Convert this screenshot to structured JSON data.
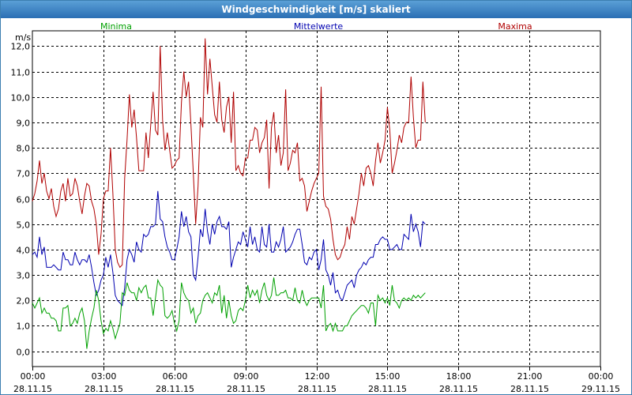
{
  "window": {
    "title": "Windgeschwindigkeit [m/s] skaliert"
  },
  "chart_data": {
    "type": "line",
    "title": "Windgeschwindigkeit [m/s] skaliert",
    "ylabel": "m/s",
    "ylim": [
      -0.6,
      12.6
    ],
    "yticks": [
      "0,0",
      "1,0",
      "2,0",
      "3,0",
      "4,0",
      "5,0",
      "6,0",
      "7,0",
      "8,0",
      "9,0",
      "10,0",
      "11,0",
      "12,0"
    ],
    "ytick_values": [
      0,
      1,
      2,
      3,
      4,
      5,
      6,
      7,
      8,
      9,
      10,
      11,
      12
    ],
    "xlim": [
      0,
      24
    ],
    "xticks": [
      {
        "time": "00:00",
        "date": "28.11.15"
      },
      {
        "time": "03:00",
        "date": "28.11.15"
      },
      {
        "time": "06:00",
        "date": "28.11.15"
      },
      {
        "time": "09:00",
        "date": "28.11.15"
      },
      {
        "time": "12:00",
        "date": "28.11.15"
      },
      {
        "time": "15:00",
        "date": "28.11.15"
      },
      {
        "time": "18:00",
        "date": "28.11.15"
      },
      {
        "time": "21:00",
        "date": "28.11.15"
      },
      {
        "time": "00:00",
        "date": "29.11.15"
      }
    ],
    "grid": true,
    "legend_position": "top",
    "x_step_hours": 0.1,
    "series": [
      {
        "name": "Maxima",
        "color": "#b00000",
        "values": [
          5.9,
          6.2,
          6.7,
          7.5,
          6.6,
          7.0,
          6.3,
          6.0,
          6.4,
          5.7,
          5.3,
          5.6,
          6.3,
          6.6,
          5.9,
          6.8,
          6.1,
          6.2,
          6.8,
          6.5,
          5.9,
          5.4,
          6.1,
          6.6,
          6.5,
          5.9,
          5.6,
          5.0,
          3.8,
          4.6,
          6.0,
          6.3,
          6.3,
          8.0,
          6.2,
          4.0,
          3.5,
          3.3,
          3.4,
          6.8,
          8.3,
          10.1,
          8.8,
          9.5,
          8.4,
          7.1,
          7.1,
          7.1,
          8.6,
          7.6,
          8.9,
          10.2,
          8.7,
          8.5,
          12.0,
          9.1,
          7.9,
          8.6,
          7.9,
          7.2,
          7.3,
          7.5,
          7.6,
          9.8,
          11.0,
          10.0,
          10.6,
          8.9,
          7.0,
          5.0,
          6.5,
          9.2,
          8.8,
          12.3,
          10.1,
          11.5,
          10.4,
          9.3,
          9.0,
          10.6,
          9.1,
          8.6,
          9.6,
          10.0,
          8.2,
          10.2,
          7.1,
          7.3,
          7.0,
          6.9,
          7.6,
          7.6,
          8.3,
          8.3,
          8.8,
          8.7,
          7.8,
          8.2,
          8.4,
          9.1,
          6.4,
          8.8,
          9.4,
          7.8,
          8.5,
          7.3,
          7.8,
          10.3,
          7.1,
          7.4,
          7.9,
          7.8,
          8.2,
          6.7,
          6.8,
          6.5,
          5.5,
          5.9,
          6.3,
          6.6,
          6.8,
          7.0,
          10.4,
          6.1,
          5.7,
          5.6,
          5.2,
          4.4,
          3.8,
          3.6,
          3.7,
          4.0,
          4.2,
          4.9,
          4.4,
          5.3,
          5.0,
          5.6,
          6.2,
          7.0,
          6.5,
          7.2,
          7.3,
          7.0,
          6.5,
          7.5,
          8.2,
          7.4,
          7.8,
          8.3,
          9.6,
          8.7,
          7.0,
          7.4,
          7.9,
          8.5,
          8.2,
          8.8,
          9.0,
          9.0,
          10.8,
          9.2,
          8.0,
          8.3,
          8.3,
          10.6,
          9.0
        ]
      },
      {
        "name": "Mittelwerte",
        "color": "#0000b0",
        "values": [
          3.8,
          3.9,
          3.7,
          4.5,
          3.8,
          4.1,
          3.3,
          3.3,
          3.3,
          3.4,
          3.3,
          3.2,
          3.2,
          3.9,
          3.6,
          3.6,
          3.4,
          3.4,
          3.9,
          3.6,
          3.4,
          3.6,
          3.6,
          3.5,
          3.8,
          3.3,
          2.7,
          2.2,
          2.4,
          2.8,
          3.0,
          3.7,
          3.3,
          3.8,
          3.1,
          2.2,
          2.0,
          1.9,
          1.8,
          2.5,
          3.6,
          4.0,
          3.8,
          3.5,
          4.3,
          4.0,
          3.9,
          4.6,
          4.5,
          4.6,
          4.9,
          4.9,
          5.0,
          6.3,
          5.2,
          5.1,
          4.5,
          4.1,
          3.9,
          3.6,
          3.6,
          4.0,
          4.5,
          5.5,
          4.9,
          5.3,
          4.7,
          4.5,
          3.0,
          2.8,
          3.7,
          4.8,
          4.5,
          5.6,
          4.7,
          4.2,
          5.0,
          4.6,
          5.1,
          5.3,
          4.9,
          4.9,
          4.8,
          5.1,
          3.3,
          3.7,
          4.0,
          4.3,
          4.2,
          4.7,
          4.4,
          4.1,
          4.9,
          4.2,
          4.5,
          4.0,
          3.9,
          4.9,
          4.2,
          4.1,
          5.0,
          3.9,
          3.9,
          4.3,
          4.1,
          4.4,
          4.9,
          3.9,
          4.0,
          4.1,
          4.3,
          4.6,
          4.8,
          4.8,
          4.2,
          3.5,
          3.4,
          3.7,
          3.6,
          3.9,
          4.0,
          3.2,
          3.6,
          4.4,
          3.2,
          3.0,
          2.6,
          3.1,
          2.3,
          2.4,
          2.1,
          2.0,
          2.3,
          2.6,
          2.7,
          2.8,
          2.5,
          3.0,
          3.2,
          3.3,
          3.5,
          3.4,
          3.6,
          3.7,
          3.7,
          4.2,
          4.2,
          4.4,
          4.5,
          4.4,
          4.4,
          4.0,
          4.0,
          4.1,
          4.2,
          4.0,
          4.0,
          4.6,
          4.5,
          4.4,
          5.4,
          4.7,
          5.0,
          4.7,
          4.1,
          5.1,
          5.0
        ]
      },
      {
        "name": "Minima",
        "color": "#00a000",
        "values": [
          1.9,
          1.7,
          1.9,
          2.1,
          1.5,
          1.7,
          1.5,
          1.5,
          1.3,
          1.3,
          1.2,
          0.8,
          0.8,
          1.7,
          1.7,
          1.8,
          1.0,
          1.1,
          1.3,
          1.1,
          1.5,
          1.7,
          1.2,
          0.1,
          0.8,
          1.3,
          1.7,
          2.4,
          2.0,
          1.2,
          0.7,
          0.9,
          0.8,
          1.2,
          0.9,
          0.5,
          0.8,
          1.1,
          2.3,
          2.2,
          2.7,
          2.4,
          2.3,
          2.3,
          2.0,
          2.5,
          2.3,
          2.5,
          2.6,
          2.1,
          2.1,
          1.4,
          2.1,
          2.8,
          2.6,
          2.5,
          1.4,
          1.3,
          1.4,
          1.6,
          1.1,
          0.8,
          1.2,
          2.7,
          2.3,
          2.1,
          2.0,
          1.5,
          1.7,
          1.1,
          1.4,
          1.5,
          2.0,
          2.2,
          2.3,
          2.1,
          1.9,
          2.3,
          2.2,
          2.6,
          1.5,
          2.2,
          1.3,
          2.0,
          1.4,
          1.1,
          1.2,
          1.6,
          1.7,
          1.6,
          2.0,
          2.6,
          2.1,
          2.4,
          2.2,
          2.4,
          1.9,
          2.4,
          2.7,
          2.2,
          2.0,
          2.2,
          2.9,
          2.2,
          2.2,
          2.3,
          2.3,
          2.4,
          2.1,
          2.1,
          2.0,
          2.5,
          2.0,
          1.9,
          2.4,
          2.0,
          1.8,
          2.0,
          2.1,
          2.1,
          2.1,
          2.1,
          1.7,
          2.6,
          0.8,
          1.0,
          1.1,
          0.8,
          1.1,
          0.8,
          0.8,
          0.8,
          1.0,
          1.0,
          1.2,
          1.4,
          1.5,
          1.6,
          1.7,
          1.8,
          1.8,
          1.7,
          1.5,
          1.9,
          1.9,
          1.0,
          2.2,
          2.0,
          2.1,
          1.9,
          2.1,
          1.8,
          2.6,
          2.0,
          1.9,
          1.7,
          2.0,
          2.1,
          2.0,
          2.1,
          2.0,
          2.2,
          2.1,
          2.2,
          2.1,
          2.2,
          2.3
        ]
      }
    ]
  }
}
